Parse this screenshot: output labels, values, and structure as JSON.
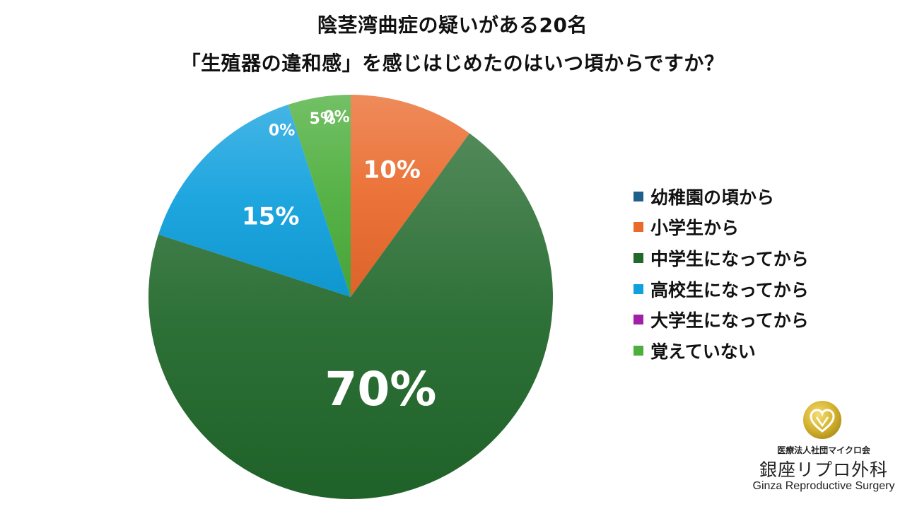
{
  "chart_data": {
    "type": "pie",
    "title": "陰茎湾曲症の疑いがある20名",
    "subtitle": "「生殖器の違和感」を感じはじめたのはいつ頃からですか？",
    "categories": [
      "幼稚園の頃から",
      "小学生から",
      "中学生になってから",
      "高校生になってから",
      "大学生になってから",
      "覚えていない"
    ],
    "values": [
      0,
      10,
      70,
      15,
      0,
      5
    ],
    "data_labels": [
      "0%",
      "10%",
      "70%",
      "15%",
      "0%",
      "5%"
    ],
    "colors": [
      "#1f5f8b",
      "#ea6a2c",
      "#21682b",
      "#10a0dd",
      "#a021a6",
      "#4cae3b"
    ],
    "legend_position": "right"
  },
  "logo": {
    "corporation": "医療法人社団マイクロ会",
    "name_jp": "銀座リプロ外科",
    "name_en": "Ginza Reproductive Surgery"
  }
}
